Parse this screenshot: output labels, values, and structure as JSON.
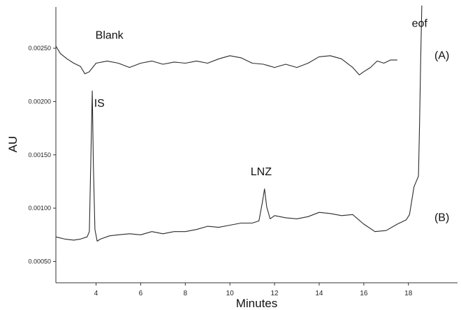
{
  "chart_data": {
    "type": "line",
    "xlabel": "Minutes",
    "ylabel": "AU",
    "xlim": [
      2.2,
      20.2
    ],
    "ylim": [
      0.0003,
      0.0029
    ],
    "x_ticks": [
      4,
      6,
      8,
      10,
      12,
      14,
      16,
      18
    ],
    "x_tick_labels": [
      "4",
      "6",
      "8",
      "10",
      "12",
      "14",
      "16",
      "18"
    ],
    "y_ticks": [
      0.0005,
      0.001,
      0.0015,
      0.002,
      0.0025
    ],
    "y_tick_labels": [
      "0.00050",
      "0.00100",
      "0.00150",
      "0.00200",
      "0.00250"
    ],
    "grid": false,
    "legend": "none",
    "series": [
      {
        "name": "(A)",
        "x": [
          2.2,
          2.4,
          2.7,
          3.0,
          3.3,
          3.5,
          3.7,
          4.0,
          4.5,
          5.0,
          5.5,
          6.0,
          6.5,
          7.0,
          7.5,
          8.0,
          8.5,
          9.0,
          9.5,
          10.0,
          10.5,
          11.0,
          11.5,
          12.0,
          12.5,
          13.0,
          13.5,
          14.0,
          14.5,
          15.0,
          15.5,
          15.8,
          16.0,
          16.3,
          16.6,
          16.9,
          17.2,
          17.5
        ],
        "y": [
          0.00252,
          0.00245,
          0.0024,
          0.00236,
          0.00233,
          0.00226,
          0.00228,
          0.00236,
          0.00238,
          0.00236,
          0.00232,
          0.00236,
          0.00238,
          0.00235,
          0.00237,
          0.00236,
          0.00238,
          0.00236,
          0.0024,
          0.00243,
          0.00241,
          0.00236,
          0.00235,
          0.00232,
          0.00235,
          0.00232,
          0.00236,
          0.00242,
          0.00243,
          0.0024,
          0.00232,
          0.00225,
          0.00228,
          0.00232,
          0.00238,
          0.00236,
          0.00239,
          0.00239
        ]
      },
      {
        "name": "(B)",
        "x": [
          2.2,
          2.6,
          3.0,
          3.3,
          3.6,
          3.7,
          3.78,
          3.83,
          3.88,
          3.95,
          4.05,
          4.2,
          4.6,
          5.0,
          5.5,
          6.0,
          6.5,
          7.0,
          7.5,
          8.0,
          8.5,
          9.0,
          9.5,
          10.0,
          10.5,
          11.0,
          11.3,
          11.45,
          11.55,
          11.65,
          11.8,
          12.0,
          12.5,
          13.0,
          13.5,
          14.0,
          14.5,
          15.0,
          15.5,
          16.0,
          16.5,
          17.0,
          17.5,
          17.9,
          18.05,
          18.25,
          18.45,
          18.5,
          18.55,
          18.6
        ],
        "y": [
          0.00073,
          0.00071,
          0.0007,
          0.00071,
          0.00073,
          0.00078,
          0.0016,
          0.0021,
          0.0014,
          0.0008,
          0.00069,
          0.00071,
          0.00074,
          0.00075,
          0.00076,
          0.00075,
          0.00078,
          0.00076,
          0.00078,
          0.00078,
          0.0008,
          0.00083,
          0.00082,
          0.00084,
          0.00086,
          0.00086,
          0.00088,
          0.00105,
          0.00118,
          0.00101,
          0.0009,
          0.00093,
          0.00091,
          0.0009,
          0.00092,
          0.00096,
          0.00095,
          0.00093,
          0.00094,
          0.00085,
          0.00078,
          0.00079,
          0.00085,
          0.00089,
          0.00094,
          0.0012,
          0.0013,
          0.0018,
          0.0024,
          0.0029
        ]
      }
    ],
    "annotations": [
      {
        "text": "Blank",
        "x": 4.6,
        "y": 0.00259
      },
      {
        "text": "IS",
        "x": 4.15,
        "y": 0.00195
      },
      {
        "text": "LNZ",
        "x": 11.4,
        "y": 0.00131
      },
      {
        "text": "eof",
        "x": 18.5,
        "y": 0.0027
      },
      {
        "text": "(A)",
        "x": 19.5,
        "y": 0.0024
      },
      {
        "text": "(B)",
        "x": 19.5,
        "y": 0.00088
      }
    ]
  }
}
